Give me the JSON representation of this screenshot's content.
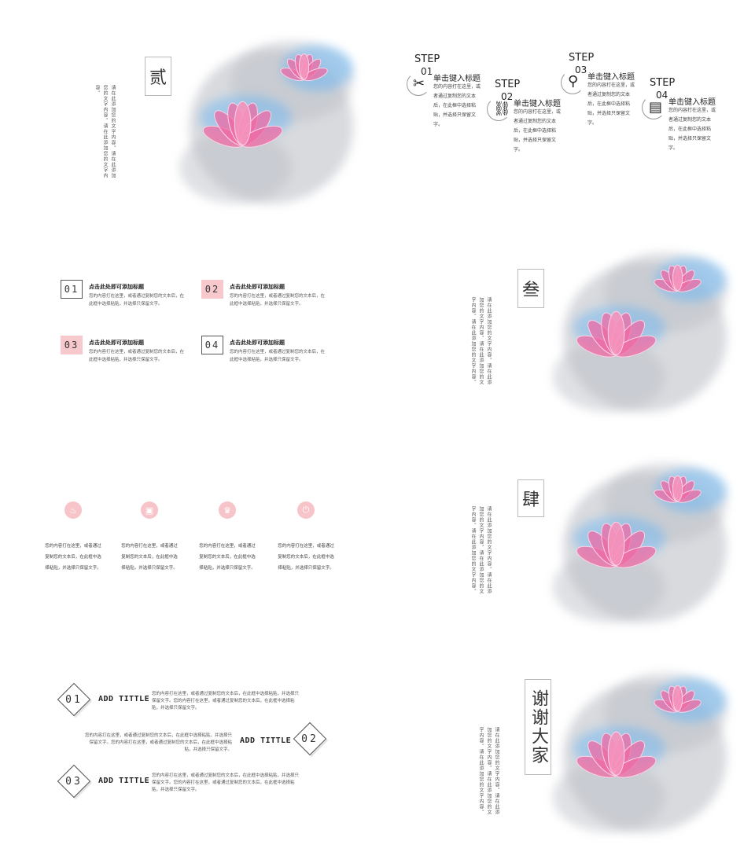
{
  "colors": {
    "pink": "#f7c4c9",
    "lotus_pink": "#ef6aa4",
    "ink_blue": "#6fb6f0",
    "ink_gray": "#b9bcc4"
  },
  "section2": {
    "title": "贰",
    "vertical_text": "请在此添加您的文字内容。请在此添加您的文字内容，请在此添加您的文字内容。",
    "steps": [
      {
        "word": "STEP",
        "num": "01",
        "title": "单击键入标题",
        "desc": "您的内容打在这里，或者通过复制您的文本后，在此框中选择粘贴，并选择只保留文字。",
        "icon": "wrench-screwdriver-icon",
        "glyph": "✂"
      },
      {
        "word": "STEP",
        "num": "02",
        "title": "单击键入标题",
        "desc": "您的内容打在这里，或者通过复制您的文本后，在此框中选择粘贴，并选择只保留文字。",
        "icon": "link-icon",
        "glyph": "⛓"
      },
      {
        "word": "STEP",
        "num": "03",
        "title": "单击键入标题",
        "desc": "您的内容打在这里，或者通过复制您的文本后，在此框中选择粘贴，并选择只保留文字。",
        "icon": "magnifier-icon",
        "glyph": "⚲"
      },
      {
        "word": "STEP",
        "num": "04",
        "title": "单击键入标题",
        "desc": "您的内容打在这里，或者通过复制您的文本后，在此框中选择粘贴，并选择只保留文字。",
        "icon": "clipboard-icon",
        "glyph": "▤"
      }
    ]
  },
  "list": {
    "items": [
      {
        "num": "01",
        "title": "点击此处即可添加标题",
        "desc": "您的内容打在这里，或者通过复制您的文本后，在此框中选择粘贴，并选择只保留文字。"
      },
      {
        "num": "02",
        "title": "点击此处即可添加标题",
        "desc": "您的内容打在这里，或者通过复制您的文本后，在此框中选择粘贴，并选择只保留文字。"
      },
      {
        "num": "03",
        "title": "点击此处即可添加标题",
        "desc": "您的内容打在这里，或者通过复制您的文本后，在此框中选择粘贴，并选择只保留文字。"
      },
      {
        "num": "04",
        "title": "点击此处即可添加标题",
        "desc": "您的内容打在这里，或者通过复制您的文本后，在此框中选择粘贴，并选择只保留文字。"
      }
    ]
  },
  "section3": {
    "title": "叁",
    "vertical_text": "请在此添加您的文字内容。请在此添加您的文字内容，请在此添加您的文字内容。请在此添加您的文字内容。"
  },
  "features": {
    "items": [
      {
        "icon": "gift-icon",
        "glyph": "♨",
        "desc": "您的内容打在这里，或者通过复制您的文本后，在此框中选择粘贴，并选择只保留文字。"
      },
      {
        "icon": "briefcase-icon",
        "glyph": "▣",
        "desc": "您的内容打在这里，或者通过复制您的文本后，在此框中选择粘贴，并选择只保留文字。"
      },
      {
        "icon": "trophy-icon",
        "glyph": "♛",
        "desc": "您的内容打在这里，或者通过复制您的文本后，在此框中选择粘贴，并选择只保留文字。"
      },
      {
        "icon": "power-icon",
        "glyph": "⏻",
        "desc": "您的内容打在这里，或者通过复制您的文本后，在此框中选择粘贴，并选择只保留文字。"
      }
    ]
  },
  "section4": {
    "title": "肆",
    "vertical_text": "请在此添加您的文字内容。请在此添加您的文字内容，请在此添加您的文字内容。请在此添加您的文字内容。"
  },
  "diamonds": {
    "items": [
      {
        "num": "01",
        "title": "ADD TITTLE",
        "desc": "您的内容打在这里，或者通过复制您的文本后，在此框中选择粘贴，并选择只保留文字。您的内容打在这里，或者通过复制您的文本后，在此框中选择粘贴，并选择只保留文字。"
      },
      {
        "num": "02",
        "title": "ADD TITTLE",
        "desc": "您的内容打在这里，或者通过复制您的文本后，在此框中选择粘贴，并选择只保留文字。您的内容打在这里，或者通过复制您的文本后，在此框中选择粘贴，并选择只保留文字。"
      },
      {
        "num": "03",
        "title": "ADD TITTLE",
        "desc": "您的内容打在这里，或者通过复制您的文本后，在此框中选择粘贴，并选择只保留文字。您的内容打在这里，或者通过复制您的文本后，在此框中选择粘贴，并选择只保留文字。"
      }
    ]
  },
  "closing": {
    "title_line1": "谢谢",
    "title_line2": "大家",
    "vertical_text": "请在此添加您的文字内容。请在此添加您的文字内容，请在此添加您的文字内容。请在此添加您的文字内容。"
  }
}
